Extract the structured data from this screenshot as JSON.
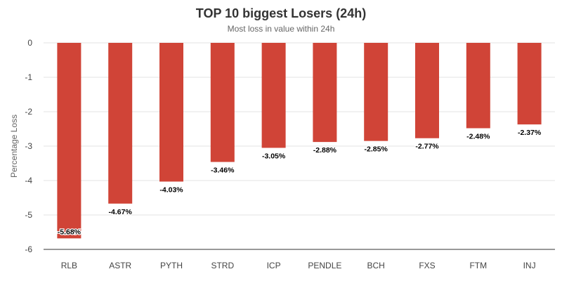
{
  "chart_data": {
    "type": "bar",
    "title": "TOP 10 biggest Losers (24h)",
    "subtitle": "Most loss in value within 24h",
    "xlabel": "",
    "ylabel": "Percentage Loss",
    "categories": [
      "RLB",
      "ASTR",
      "PYTH",
      "STRD",
      "ICP",
      "PENDLE",
      "BCH",
      "FXS",
      "FTM",
      "INJ"
    ],
    "values": [
      -5.68,
      -4.67,
      -4.03,
      -3.46,
      -3.05,
      -2.88,
      -2.85,
      -2.77,
      -2.48,
      -2.37
    ],
    "data_labels": [
      "-5.68%",
      "-4.67%",
      "-4.03%",
      "-3.46%",
      "-3.05%",
      "-2.88%",
      "-2.85%",
      "-2.77%",
      "-2.48%",
      "-2.37%"
    ],
    "ylim": [
      -6,
      0
    ],
    "yticks": [
      0,
      -1,
      -2,
      -3,
      -4,
      -5,
      -6
    ],
    "grid": true,
    "legend": "none",
    "bar_color": "#d04437"
  }
}
